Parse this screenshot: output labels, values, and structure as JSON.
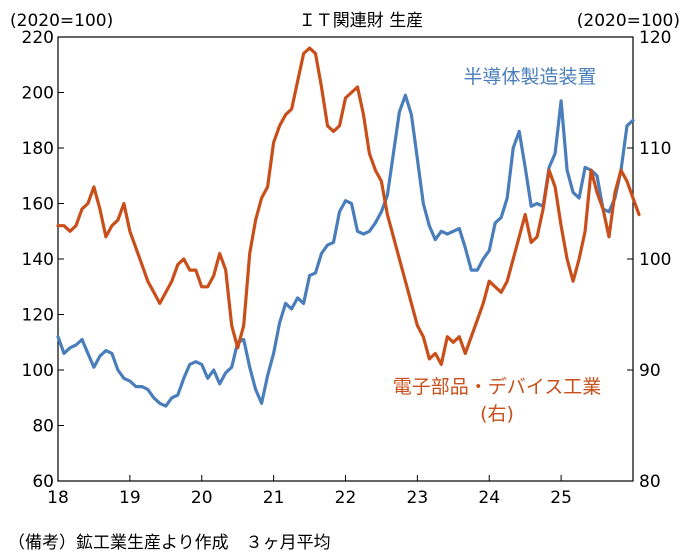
{
  "chart_data": {
    "type": "line",
    "title": "ＩＴ関連財 生産",
    "left_unit": "(2020=100)",
    "right_unit": "(2020=100)",
    "x_ticks": [
      "18",
      "19",
      "20",
      "21",
      "22",
      "23",
      "24",
      "25"
    ],
    "y_left_ticks": [
      "60",
      "80",
      "100",
      "120",
      "140",
      "160",
      "180",
      "200",
      "220"
    ],
    "y_right_ticks": [
      "80",
      "90",
      "100",
      "110",
      "120"
    ],
    "ylim_left": [
      60,
      220
    ],
    "ylim_right": [
      80,
      120
    ],
    "xlim": [
      2018.0,
      2026.0
    ],
    "grid": false,
    "series": [
      {
        "name": "半導体製造装置",
        "axis": "left",
        "color": "#4a7ebb",
        "x_start": 2018.0,
        "x_step": 0.08333,
        "values": [
          112,
          106,
          108,
          109,
          111,
          106,
          101,
          105,
          107,
          106,
          100,
          97,
          96,
          94,
          94,
          93,
          90,
          88,
          87,
          90,
          91,
          97,
          102,
          103,
          102,
          97,
          100,
          95,
          99,
          101,
          110,
          111,
          101,
          93,
          88,
          98,
          106,
          117,
          124,
          122,
          126,
          124,
          134,
          135,
          142,
          145,
          146,
          157,
          161,
          160,
          150,
          149,
          150,
          153,
          157,
          163,
          178,
          193,
          199,
          192,
          176,
          160,
          152,
          147,
          150,
          149,
          150,
          151,
          144,
          136,
          136,
          140,
          143,
          153,
          155,
          162,
          180,
          186,
          173,
          159,
          160,
          159,
          173,
          178,
          197,
          172,
          164,
          162,
          173,
          172,
          170,
          158,
          157,
          162,
          172,
          188,
          190
        ]
      },
      {
        "name": "電子部品・デバイス工業",
        "label_sub": "(右)",
        "axis": "right",
        "color": "#c84f1a",
        "x_start": 2018.0,
        "x_step": 0.08333,
        "values": [
          103,
          103,
          102.5,
          103,
          104.5,
          105,
          106.5,
          104.5,
          102,
          103,
          103.5,
          105,
          102.5,
          101,
          99.5,
          98,
          97,
          96,
          97,
          98,
          99.5,
          100,
          99,
          99,
          97.5,
          97.5,
          98.5,
          100.5,
          99,
          94,
          92,
          94,
          100.5,
          103.5,
          105.5,
          106.5,
          110.5,
          112,
          113,
          113.5,
          116,
          118.5,
          119,
          118.5,
          115.5,
          112,
          111.5,
          112,
          114.5,
          115,
          115.5,
          113,
          109.5,
          108,
          107,
          104,
          102,
          100,
          98,
          96,
          94,
          93,
          91,
          91.5,
          90.5,
          93,
          92.5,
          93,
          91.5,
          93,
          94.5,
          96,
          98,
          97.5,
          97,
          98,
          100,
          102,
          104,
          101.5,
          102,
          104.5,
          108,
          106.5,
          103,
          100,
          98,
          100,
          102.5,
          108,
          106,
          104.5,
          102,
          106,
          108,
          107,
          105.5,
          104
        ]
      }
    ]
  },
  "series_labels": {
    "semi": "半導体製造装置",
    "elec": "電子部品・デバイス工業",
    "elec_sub": "(右)"
  },
  "footnote": "（備考）鉱工業生産より作成　３ヶ月平均",
  "colors": {
    "blue": "#4a7ebb",
    "orange": "#c84f1a",
    "axis": "#000000"
  }
}
